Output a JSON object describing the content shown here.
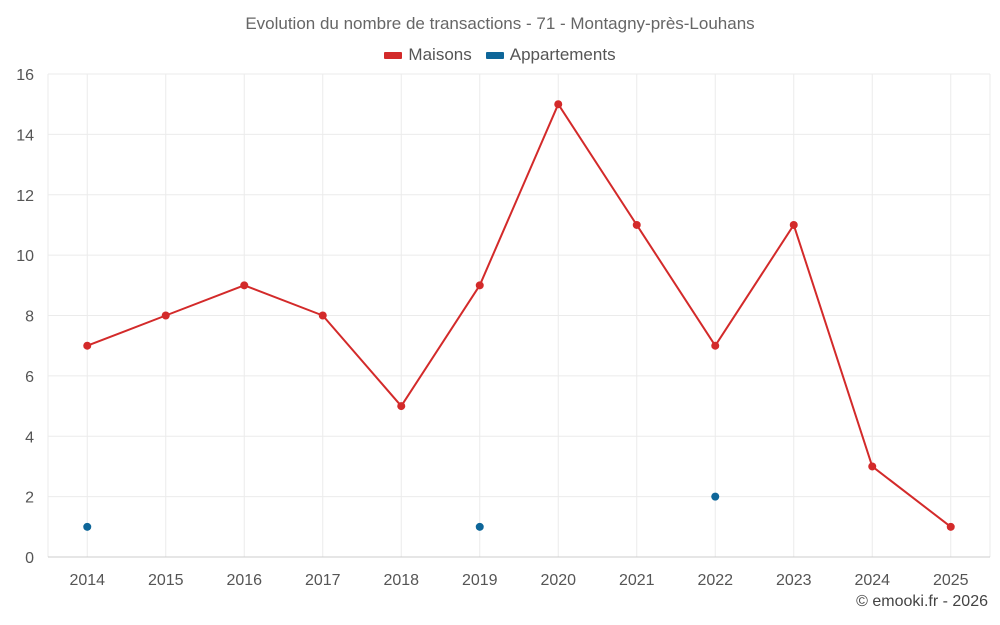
{
  "chart_data": {
    "type": "line",
    "title": "Evolution du nombre de transactions - 71 - Montagny-près-Louhans",
    "categories": [
      "2014",
      "2015",
      "2016",
      "2017",
      "2018",
      "2019",
      "2020",
      "2021",
      "2022",
      "2023",
      "2024",
      "2025"
    ],
    "ylim": [
      0,
      16
    ],
    "yticks": [
      0,
      2,
      4,
      6,
      8,
      10,
      12,
      14,
      16
    ],
    "grid": true,
    "legend_position": "top-center",
    "series": [
      {
        "name": "Maisons",
        "color": "#d32a2a",
        "mode": "line+markers",
        "values": [
          7,
          8,
          9,
          8,
          5,
          9,
          15,
          11,
          7,
          11,
          3,
          1
        ]
      },
      {
        "name": "Appartements",
        "color": "#0e6699",
        "mode": "markers",
        "values": [
          1,
          null,
          null,
          null,
          null,
          1,
          null,
          null,
          2,
          null,
          null,
          null
        ]
      }
    ]
  },
  "credit": "© emooki.fr - 2026"
}
